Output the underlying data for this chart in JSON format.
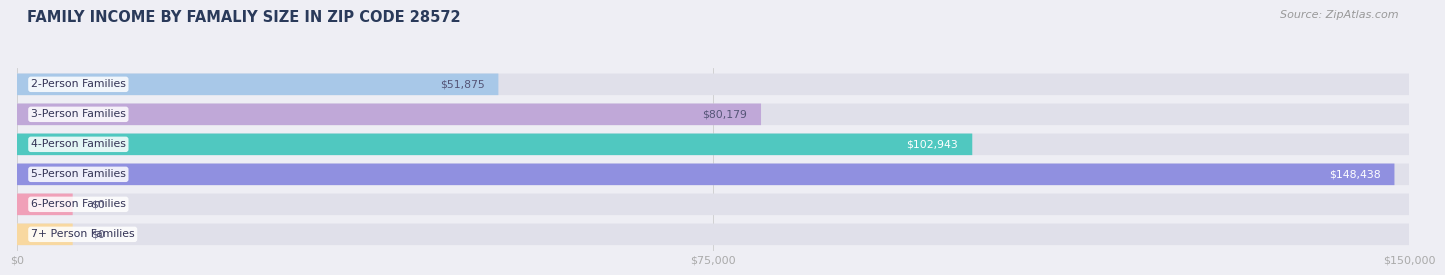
{
  "title": "FAMILY INCOME BY FAMALIY SIZE IN ZIP CODE 28572",
  "source": "Source: ZipAtlas.com",
  "categories": [
    "2-Person Families",
    "3-Person Families",
    "4-Person Families",
    "5-Person Families",
    "6-Person Families",
    "7+ Person Families"
  ],
  "values": [
    51875,
    80179,
    102943,
    148438,
    0,
    0
  ],
  "bar_colors": [
    "#a8c8e8",
    "#c0a8d8",
    "#50c8c0",
    "#9090e0",
    "#f0a0b8",
    "#f8d8a0"
  ],
  "label_colors": [
    "#555577",
    "#555577",
    "#ffffff",
    "#ffffff",
    "#555577",
    "#555577"
  ],
  "value_labels": [
    "$51,875",
    "$80,179",
    "$102,943",
    "$148,438",
    "$0",
    "$0"
  ],
  "xlim": [
    0,
    150000
  ],
  "xticks": [
    0,
    75000,
    150000
  ],
  "xtick_labels": [
    "$0",
    "$75,000",
    "$150,000"
  ],
  "background_color": "#eeeef4",
  "bar_background_color": "#e0e0ea",
  "title_color": "#2a3a5a",
  "source_color": "#999999",
  "title_fontsize": 10.5,
  "source_fontsize": 8,
  "bar_height": 0.72,
  "label_fontsize": 7.8,
  "value_fontsize": 7.8
}
